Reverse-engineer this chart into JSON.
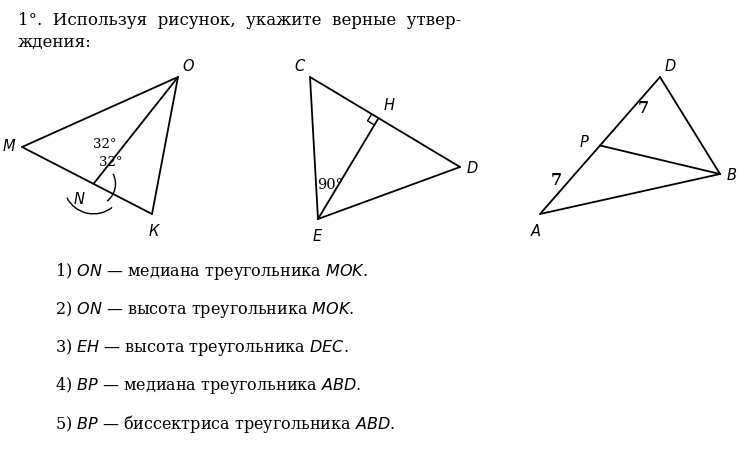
{
  "title_line1": "1°.  Используя  рисунок,  укажите  верные  утвер-",
  "title_line2": "ждения:",
  "items": [
    "1) $ON$ — медиана треугольника $MOK$.",
    "2) $ON$ — высота треугольника $MOK$.",
    "3) $EH$ — высота треугольника $DEC$.",
    "4) $BP$ — медиана треугольника $ABD$.",
    "5) $BP$ — биссектриса треугольника $ABD$."
  ],
  "bg_color": "#ffffff",
  "text_color": "#000000",
  "font_size_title": 12,
  "font_size_items": 11.5,
  "font_size_labels": 10.5,
  "font_size_angles": 9.5
}
